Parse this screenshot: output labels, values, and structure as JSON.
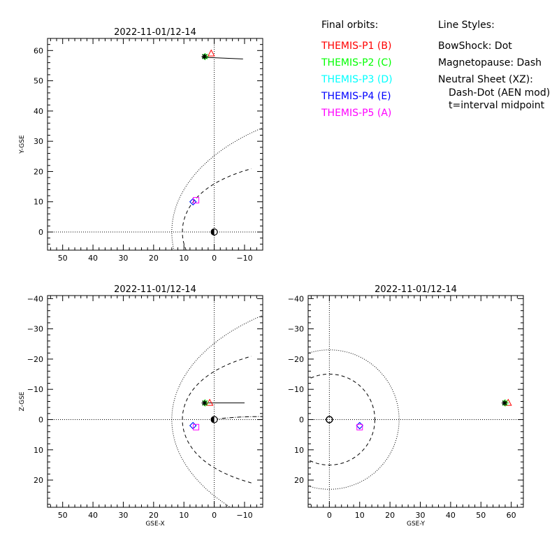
{
  "legend": {
    "orbits_header": "Final orbits:",
    "styles_header": "Line Styles:",
    "probes": [
      {
        "label": "THEMIS-P1 (B)",
        "color": "#ff0000"
      },
      {
        "label": "THEMIS-P2 (C)",
        "color": "#00ff00"
      },
      {
        "label": "THEMIS-P3 (D)",
        "color": "#00ffff"
      },
      {
        "label": "THEMIS-P4 (E)",
        "color": "#0000ff"
      },
      {
        "label": "THEMIS-P5 (A)",
        "color": "#ff00ff"
      }
    ],
    "styles": [
      "BowShock: Dot",
      "Magnetopause: Dash",
      "Neutral Sheet (XZ):",
      "Dash-Dot (AEN mod)",
      "t=interval midpoint"
    ]
  },
  "chart_data": [
    {
      "type": "scatter",
      "title": "2022-11-01/12-14",
      "xlabel": "",
      "ylabel": "Y-GSE",
      "xlim": [
        55,
        -16
      ],
      "ylim": [
        64,
        -6
      ],
      "xticks": [
        50,
        40,
        30,
        20,
        10,
        0,
        -10
      ],
      "yticks": [
        0,
        10,
        20,
        30,
        40,
        50,
        60
      ],
      "grid": false,
      "series": [
        {
          "name": "THEMIS-P1 (B)",
          "marker": "triangle",
          "color": "#ff0000",
          "points": [
            [
              1,
              59
            ]
          ]
        },
        {
          "name": "THEMIS-P2 (C)",
          "marker": "star",
          "color": "#00ff00",
          "points": [
            [
              3,
              58
            ]
          ]
        },
        {
          "name": "THEMIS-P3 (D)",
          "marker": "diamond",
          "color": "#00ffff",
          "points": [
            [
              7,
              10
            ]
          ]
        },
        {
          "name": "THEMIS-P4 (E)",
          "marker": "diamond",
          "color": "#0000ff",
          "points": [
            [
              7,
              10
            ]
          ]
        },
        {
          "name": "THEMIS-P5 (A)",
          "marker": "square",
          "color": "#ff00ff",
          "points": [
            [
              6,
              10.5
            ]
          ]
        }
      ]
    },
    {
      "type": "scatter",
      "title": "2022-11-01/12-14",
      "xlabel": "GSE-X",
      "ylabel": "Z-GSE",
      "xlim": [
        55,
        -16
      ],
      "ylim": [
        -41,
        29
      ],
      "xticks": [
        50,
        40,
        30,
        20,
        10,
        0,
        -10
      ],
      "yticks": [
        20,
        10,
        0,
        -10,
        -20,
        -30,
        -40
      ],
      "grid": false,
      "series": [
        {
          "name": "THEMIS-P1 (B)",
          "marker": "triangle",
          "color": "#ff0000",
          "points": [
            [
              1.5,
              -5.5
            ]
          ]
        },
        {
          "name": "THEMIS-P2 (C)",
          "marker": "star",
          "color": "#00ff00",
          "points": [
            [
              3,
              -5.5
            ]
          ]
        },
        {
          "name": "THEMIS-P3 (D)",
          "marker": "diamond",
          "color": "#00ffff",
          "points": [
            [
              7,
              2
            ]
          ]
        },
        {
          "name": "THEMIS-P4 (E)",
          "marker": "diamond",
          "color": "#0000ff",
          "points": [
            [
              7,
              2
            ]
          ]
        },
        {
          "name": "THEMIS-P5 (A)",
          "marker": "square",
          "color": "#ff00ff",
          "points": [
            [
              6,
              2.5
            ]
          ]
        }
      ]
    },
    {
      "type": "scatter",
      "title": "2022-11-01/12-14",
      "xlabel": "GSE-Y",
      "ylabel": "",
      "xlim": [
        -7,
        64
      ],
      "ylim": [
        -41,
        29
      ],
      "xticks": [
        0,
        10,
        20,
        30,
        40,
        50,
        60
      ],
      "yticks": [
        20,
        10,
        0,
        -10,
        -20,
        -30,
        -40
      ],
      "grid": false,
      "series": [
        {
          "name": "THEMIS-P1 (B)",
          "marker": "triangle",
          "color": "#ff0000",
          "points": [
            [
              59,
              -5.5
            ]
          ]
        },
        {
          "name": "THEMIS-P2 (C)",
          "marker": "star",
          "color": "#00ff00",
          "points": [
            [
              58,
              -5.5
            ]
          ]
        },
        {
          "name": "THEMIS-P3 (D)",
          "marker": "diamond",
          "color": "#00ffff",
          "points": [
            [
              10,
              2
            ]
          ]
        },
        {
          "name": "THEMIS-P4 (E)",
          "marker": "diamond",
          "color": "#0000ff",
          "points": [
            [
              10,
              2
            ]
          ]
        },
        {
          "name": "THEMIS-P5 (A)",
          "marker": "square",
          "color": "#ff00ff",
          "points": [
            [
              10,
              2.5
            ]
          ]
        }
      ]
    }
  ]
}
